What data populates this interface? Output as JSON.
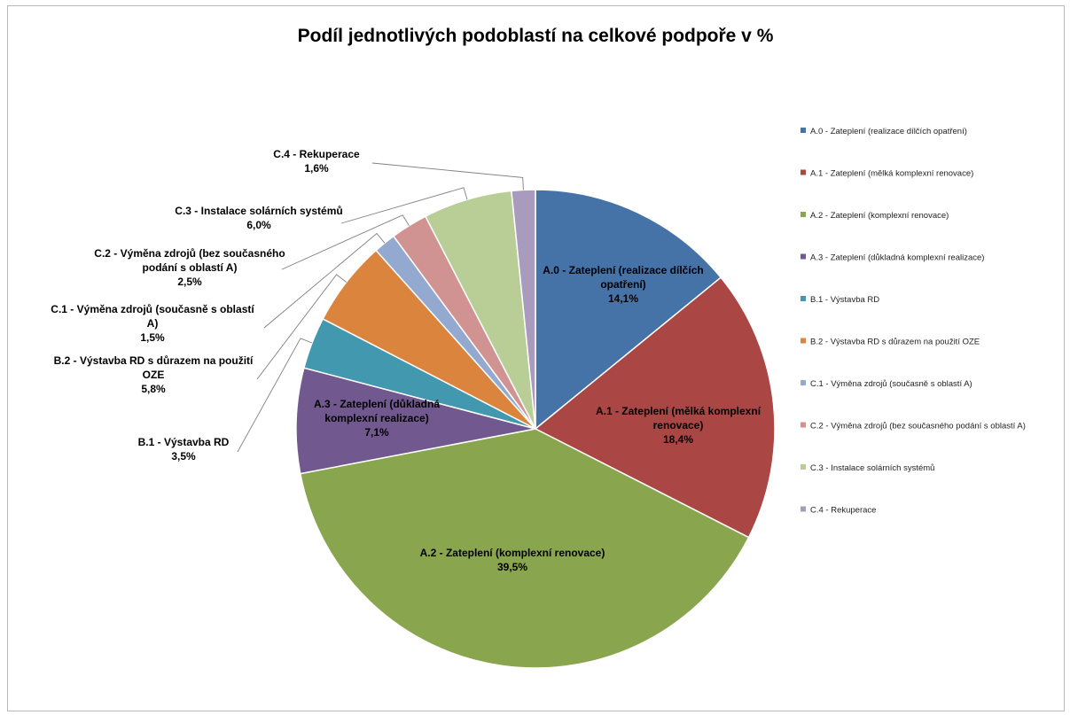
{
  "chart_data": {
    "type": "pie",
    "title": "Podíl jednotlivých podoblastí na celkové podpoře v %",
    "slices": [
      {
        "legend": "A.0 - Zateplení (realizace dílčích opatření)",
        "label_lines": [
          "A.0 - Zateplení (realizace dílčích",
          "opatření)"
        ],
        "value_label": "14,1%",
        "value": 14.1,
        "color": "#4572A7",
        "label_placement": "inside"
      },
      {
        "legend": "A.1 - Zateplení (mělká komplexní renovace)",
        "label_lines": [
          "A.1 - Zateplení (mělká komplexní",
          "renovace)"
        ],
        "value_label": "18,4%",
        "value": 18.4,
        "color": "#AA4643",
        "label_placement": "inside"
      },
      {
        "legend": "A.2 - Zateplení (komplexní renovace)",
        "label_lines": [
          "A.2 - Zateplení (komplexní renovace)"
        ],
        "value_label": "39,5%",
        "value": 39.5,
        "color": "#89A54E",
        "label_placement": "inside"
      },
      {
        "legend": "A.3 - Zateplení (důkladná komplexní realizace)",
        "label_lines": [
          "A.3 - Zateplení (důkladná",
          "komplexní realizace)"
        ],
        "value_label": "7,1%",
        "value": 7.1,
        "color": "#71588F",
        "label_placement": "inside"
      },
      {
        "legend": "B.1 - Výstavba RD",
        "label_lines": [
          "B.1 - Výstavba RD"
        ],
        "value_label": "3,5%",
        "value": 3.5,
        "color": "#4198AF",
        "label_placement": "outside"
      },
      {
        "legend": "B.2 - Výstavba RD s důrazem na použití OZE",
        "label_lines": [
          "B.2 - Výstavba RD s důrazem na použití",
          "OZE"
        ],
        "value_label": "5,8%",
        "value": 5.8,
        "color": "#DB843D",
        "label_placement": "outside"
      },
      {
        "legend": "C.1 - Výměna zdrojů (současně s oblastí A)",
        "label_lines": [
          "C.1 - Výměna zdrojů (současně s oblastí",
          "A)"
        ],
        "value_label": "1,5%",
        "value": 1.5,
        "color": "#93A9CF",
        "label_placement": "outside"
      },
      {
        "legend": "C.2 - Výměna zdrojů (bez současného podání s oblastí A)",
        "label_lines": [
          "C.2 - Výměna zdrojů (bez současného",
          "podání s oblastí A)"
        ],
        "value_label": "2,5%",
        "value": 2.5,
        "color": "#D19392",
        "label_placement": "outside"
      },
      {
        "legend": "C.3 - Instalace solárních systémů",
        "label_lines": [
          "C.3 - Instalace solárních systémů"
        ],
        "value_label": "6,0%",
        "value": 6.0,
        "color": "#B9CD96",
        "label_placement": "outside"
      },
      {
        "legend": "C.4 - Rekuperace",
        "label_lines": [
          "C.4 - Rekuperace"
        ],
        "value_label": "1,6%",
        "value": 1.6,
        "color": "#A99BBD",
        "label_placement": "outside"
      }
    ],
    "start_angle_deg": 0,
    "direction": "clockwise",
    "legend_position": "right"
  }
}
